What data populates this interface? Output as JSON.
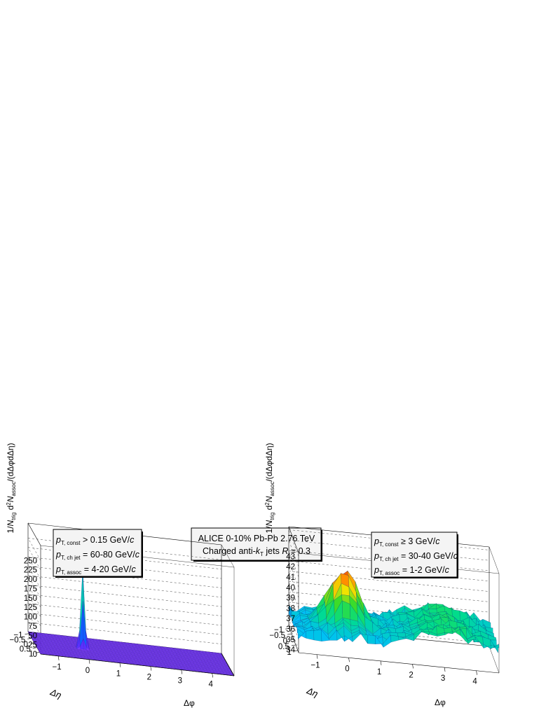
{
  "figure": {
    "header_line1": "ALICE 0-10% Pb-Pb 2.76 TeV",
    "header_line2_a": "Charged anti-",
    "header_line2_k": "k",
    "header_line2_sub": "T",
    "header_line2_b": " jets ",
    "header_line2_R": "R",
    "header_line2_c": " = 0.3"
  },
  "chart_data": [
    {
      "type": "surface",
      "panel": "left",
      "zlabel": "1/N_trig d²N_assoc/(dΔφdΔη)",
      "xlabel": "Δφ",
      "ylabel": "Δη",
      "xlim": [
        -1.5708,
        4.7124
      ],
      "ylim": [
        -1.2,
        1.2
      ],
      "zlim": [
        0,
        290
      ],
      "x_ticks": [
        "−1",
        "0",
        "1",
        "2",
        "3",
        "4"
      ],
      "y_ticks": [
        "1",
        "0.5",
        "0",
        "−0.5",
        "−1"
      ],
      "z_ticks": [
        "0",
        "25",
        "50",
        "75",
        "100",
        "125",
        "150",
        "175",
        "200",
        "225",
        "250"
      ],
      "baseline": 0,
      "peak": {
        "x": 0,
        "y": 0,
        "value": 210,
        "width": 0.06
      },
      "surface_color": "#7a3cff",
      "legend": [
        {
          "sub": "T, const",
          "val": "> 0.15 GeV/",
          "unit": "c"
        },
        {
          "sub": "T, ch jet",
          "val": "= 60-80 GeV/",
          "unit": "c"
        },
        {
          "sub": "T, assoc",
          "val": "= 4-20 GeV/",
          "unit": "c"
        }
      ]
    },
    {
      "type": "surface",
      "panel": "right",
      "zlabel": "1/N_trig d²N_assoc/(dΔφdΔη)",
      "xlabel": "Δφ",
      "ylabel": "Δη",
      "xlim": [
        -1.5708,
        4.7124
      ],
      "ylim": [
        -1.2,
        1.2
      ],
      "zlim": [
        33.7,
        43.3
      ],
      "x_ticks": [
        "−1",
        "0",
        "1",
        "2",
        "3",
        "4"
      ],
      "y_ticks": [
        "1",
        "0.5",
        "0",
        "−0.5",
        "−1"
      ],
      "z_ticks": [
        "34",
        "35",
        "36",
        "37",
        "38",
        "39",
        "40",
        "41",
        "42",
        "43"
      ],
      "baseline": 35.4,
      "peak": {
        "x": 0,
        "y": 0,
        "value": 41,
        "width": 0.45
      },
      "away_side": {
        "x": 3.14,
        "value": 1.6,
        "width": 1.0
      },
      "noise": 0.6,
      "legend": [
        {
          "sub": "T, const",
          "val": "≥ 3 GeV/",
          "unit": "c"
        },
        {
          "sub": "T, ch jet",
          "val": "= 30-40 GeV/",
          "unit": "c"
        },
        {
          "sub": "T, assoc",
          "val": "= 1-2 GeV/",
          "unit": "c"
        }
      ]
    }
  ],
  "labels": {
    "p": "p",
    "ytitle_a": "1/",
    "ytitle_N": "N",
    "ytitle_trig": "trig",
    "ytitle_b": " d",
    "ytitle_sq": "2",
    "ytitle_N2": "N",
    "ytitle_assoc": "assoc",
    "ytitle_c": "/(dΔφdΔη)",
    "xtitle": "Δφ",
    "etatitle": "Δη"
  }
}
